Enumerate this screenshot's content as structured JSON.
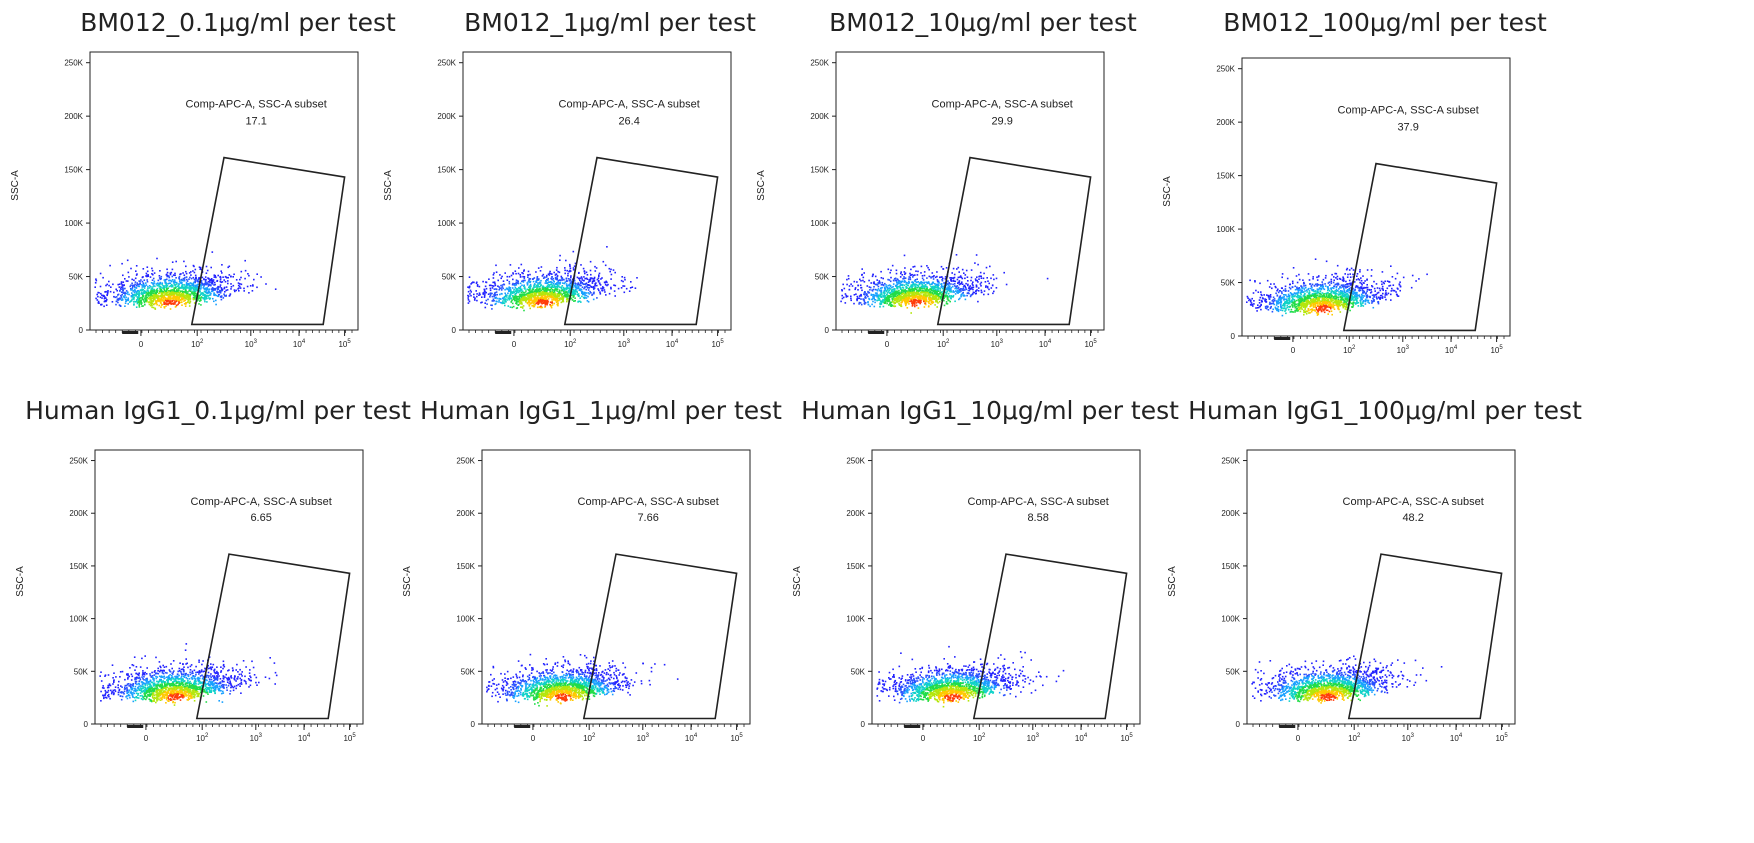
{
  "chart_data": [
    {
      "type": "scatter",
      "title": "BM012_0.1μg/ml per test",
      "ylabel": "SSC-A",
      "xscale": "biexponential",
      "xticks": [
        "0",
        "10",
        "10",
        "10",
        "10"
      ],
      "xtick_exponents": [
        "",
        "2",
        "3",
        "4",
        "5"
      ],
      "yticks": [
        "0",
        "50K",
        "100K",
        "150K",
        "200K",
        "250K"
      ],
      "ylim": [
        0,
        260000
      ],
      "gate": {
        "name": "Comp-APC-A, SSC-A subset",
        "percent": "17.1"
      }
    },
    {
      "type": "scatter",
      "title": "BM012_1μg/ml per test",
      "ylabel": "SSC-A",
      "xscale": "biexponential",
      "xticks": [
        "0",
        "10",
        "10",
        "10",
        "10"
      ],
      "xtick_exponents": [
        "",
        "2",
        "3",
        "4",
        "5"
      ],
      "yticks": [
        "0",
        "50K",
        "100K",
        "150K",
        "200K",
        "250K"
      ],
      "ylim": [
        0,
        260000
      ],
      "gate": {
        "name": "Comp-APC-A, SSC-A subset",
        "percent": "26.4"
      }
    },
    {
      "type": "scatter",
      "title": "BM012_10μg/ml per test",
      "ylabel": "SSC-A",
      "xscale": "biexponential",
      "xticks": [
        "0",
        "10",
        "10",
        "10",
        "10"
      ],
      "xtick_exponents": [
        "",
        "2",
        "3",
        "4",
        "5"
      ],
      "yticks": [
        "0",
        "50K",
        "100K",
        "150K",
        "200K",
        "250K"
      ],
      "ylim": [
        0,
        260000
      ],
      "gate": {
        "name": "Comp-APC-A, SSC-A subset",
        "percent": "29.9"
      }
    },
    {
      "type": "scatter",
      "title": "BM012_100μg/ml per test",
      "ylabel": "SSC-A",
      "xscale": "biexponential",
      "xticks": [
        "0",
        "10",
        "10",
        "10",
        "10"
      ],
      "xtick_exponents": [
        "",
        "2",
        "3",
        "4",
        "5"
      ],
      "yticks": [
        "0",
        "50K",
        "100K",
        "150K",
        "200K",
        "250K"
      ],
      "ylim": [
        0,
        260000
      ],
      "gate": {
        "name": "Comp-APC-A, SSC-A subset",
        "percent": "37.9"
      }
    },
    {
      "type": "scatter",
      "title": "Human IgG1_0.1μg/ml per test",
      "ylabel": "SSC-A",
      "xscale": "biexponential",
      "xticks": [
        "0",
        "10",
        "10",
        "10",
        "10"
      ],
      "xtick_exponents": [
        "",
        "2",
        "3",
        "4",
        "5"
      ],
      "yticks": [
        "0",
        "50K",
        "100K",
        "150K",
        "200K",
        "250K"
      ],
      "ylim": [
        0,
        260000
      ],
      "gate": {
        "name": "Comp-APC-A, SSC-A subset",
        "percent": "6.65"
      }
    },
    {
      "type": "scatter",
      "title": "Human IgG1_1μg/ml per test",
      "ylabel": "SSC-A",
      "xscale": "biexponential",
      "xticks": [
        "0",
        "10",
        "10",
        "10",
        "10"
      ],
      "xtick_exponents": [
        "",
        "2",
        "3",
        "4",
        "5"
      ],
      "yticks": [
        "0",
        "50K",
        "100K",
        "150K",
        "200K",
        "250K"
      ],
      "ylim": [
        0,
        260000
      ],
      "gate": {
        "name": "Comp-APC-A, SSC-A subset",
        "percent": "7.66"
      }
    },
    {
      "type": "scatter",
      "title": "Human IgG1_10μg/ml per test",
      "ylabel": "SSC-A",
      "xscale": "biexponential",
      "xticks": [
        "0",
        "10",
        "10",
        "10",
        "10"
      ],
      "xtick_exponents": [
        "",
        "2",
        "3",
        "4",
        "5"
      ],
      "yticks": [
        "0",
        "50K",
        "100K",
        "150K",
        "200K",
        "250K"
      ],
      "ylim": [
        0,
        260000
      ],
      "gate": {
        "name": "Comp-APC-A, SSC-A subset",
        "percent": "8.58"
      }
    },
    {
      "type": "scatter",
      "title": "Human IgG1_100μg/ml per test",
      "ylabel": "SSC-A",
      "xscale": "biexponential",
      "xticks": [
        "0",
        "10",
        "10",
        "10",
        "10"
      ],
      "xtick_exponents": [
        "",
        "2",
        "3",
        "4",
        "5"
      ],
      "yticks": [
        "0",
        "50K",
        "100K",
        "150K",
        "200K",
        "250K"
      ],
      "ylim": [
        0,
        260000
      ],
      "gate": {
        "name": "Comp-APC-A, SSC-A subset",
        "percent": "48.2"
      }
    }
  ]
}
